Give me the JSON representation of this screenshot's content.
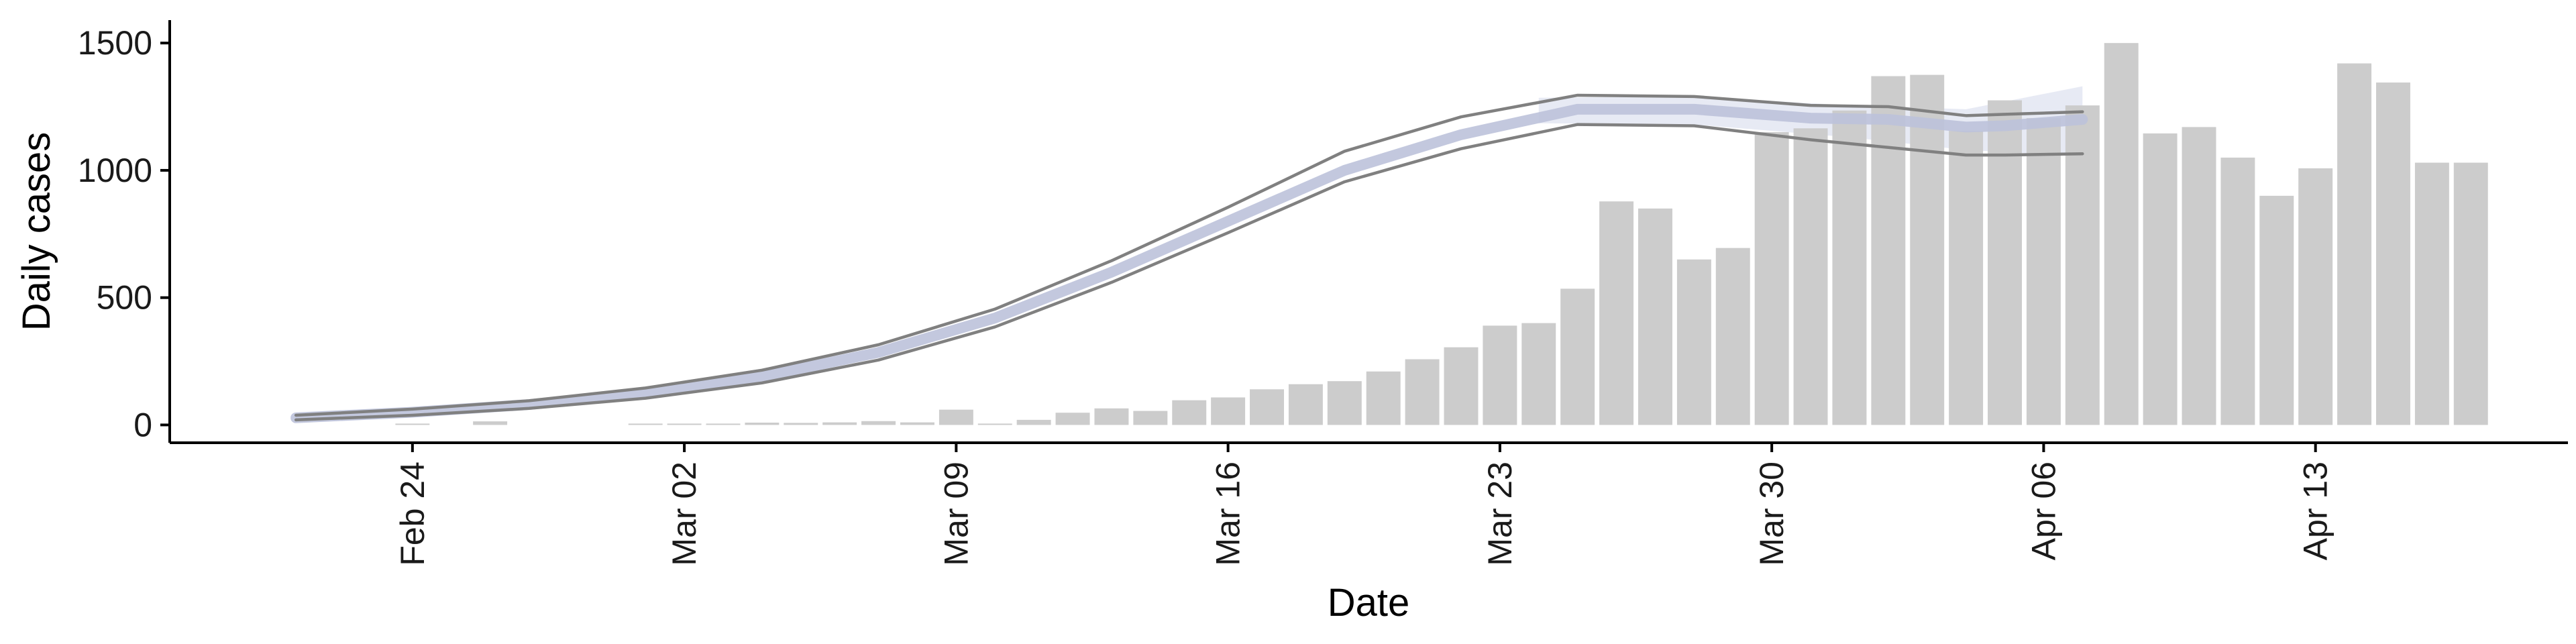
{
  "chart_data": {
    "type": "bar",
    "title": "",
    "xlabel": "Date",
    "ylabel": "Daily cases",
    "ylim": [
      -70,
      1590
    ],
    "yticks": [
      0,
      500,
      1000,
      1500
    ],
    "xticks": [
      {
        "label": "Feb 24",
        "date": "2020-02-24"
      },
      {
        "label": "Mar 02",
        "date": "2020-03-02"
      },
      {
        "label": "Mar 09",
        "date": "2020-03-09"
      },
      {
        "label": "Mar 16",
        "date": "2020-03-16"
      },
      {
        "label": "Mar 23",
        "date": "2020-03-23"
      },
      {
        "label": "Mar 30",
        "date": "2020-03-30"
      },
      {
        "label": "Apr 06",
        "date": "2020-04-06"
      },
      {
        "label": "Apr 13",
        "date": "2020-04-13"
      }
    ],
    "xlim": [
      "2020-02-17T18:00",
      "2020-04-19T12:00"
    ],
    "grid": false,
    "legend": "none",
    "bar_color": "#cccccc",
    "bar_series": {
      "name": "Daily cases",
      "dates": [
        "2020-02-24",
        "2020-02-25",
        "2020-02-26",
        "2020-02-27",
        "2020-02-28",
        "2020-02-29",
        "2020-03-01",
        "2020-03-02",
        "2020-03-03",
        "2020-03-04",
        "2020-03-05",
        "2020-03-06",
        "2020-03-07",
        "2020-03-08",
        "2020-03-09",
        "2020-03-10",
        "2020-03-11",
        "2020-03-12",
        "2020-03-13",
        "2020-03-14",
        "2020-03-15",
        "2020-03-16",
        "2020-03-17",
        "2020-03-18",
        "2020-03-19",
        "2020-03-20",
        "2020-03-21",
        "2020-03-22",
        "2020-03-23",
        "2020-03-24",
        "2020-03-25",
        "2020-03-26",
        "2020-03-27",
        "2020-03-28",
        "2020-03-29",
        "2020-03-30",
        "2020-03-31",
        "2020-04-01",
        "2020-04-02",
        "2020-04-03",
        "2020-04-04",
        "2020-04-05",
        "2020-04-06",
        "2020-04-07",
        "2020-04-08",
        "2020-04-09",
        "2020-04-10",
        "2020-04-11",
        "2020-04-12",
        "2020-04-13",
        "2020-04-14",
        "2020-04-15",
        "2020-04-16",
        "2020-04-17"
      ],
      "values": [
        3,
        0,
        14,
        0,
        0,
        0,
        3,
        4,
        3,
        9,
        8,
        10,
        15,
        10,
        60,
        3,
        20,
        48,
        65,
        55,
        97,
        108,
        140,
        160,
        172,
        210,
        258,
        305,
        390,
        400,
        535,
        878,
        850,
        650,
        695,
        1150,
        1165,
        1235,
        1370,
        1375,
        1155,
        1275,
        1205,
        1255,
        1500,
        1145,
        1170,
        1050,
        900,
        1008,
        1420,
        1345,
        1030,
        1030
      ]
    },
    "series": [
      {
        "role": "fitted-median",
        "color": "#bcc2da",
        "dates": [
          "2020-02-21",
          "2020-02-24",
          "2020-02-27",
          "2020-03-01",
          "2020-03-04",
          "2020-03-07",
          "2020-03-10",
          "2020-03-13",
          "2020-03-16",
          "2020-03-19",
          "2020-03-22",
          "2020-03-25",
          "2020-03-28",
          "2020-03-31",
          "2020-04-02",
          "2020-04-04",
          "2020-04-05",
          "2020-04-07"
        ],
        "values": [
          28,
          50,
          80,
          125,
          190,
          285,
          420,
          600,
          800,
          1000,
          1140,
          1240,
          1240,
          1205,
          1200,
          1170,
          1175,
          1200
        ]
      },
      {
        "role": "upper-bound",
        "color": "#808080",
        "dates": [
          "2020-02-21",
          "2020-02-24",
          "2020-02-27",
          "2020-03-01",
          "2020-03-04",
          "2020-03-07",
          "2020-03-10",
          "2020-03-13",
          "2020-03-16",
          "2020-03-19",
          "2020-03-22",
          "2020-03-25",
          "2020-03-28",
          "2020-03-31",
          "2020-04-02",
          "2020-04-04",
          "2020-04-05",
          "2020-04-07"
        ],
        "values": [
          38,
          62,
          95,
          145,
          215,
          315,
          455,
          645,
          855,
          1075,
          1210,
          1295,
          1290,
          1255,
          1250,
          1215,
          1220,
          1230
        ]
      },
      {
        "role": "lower-bound",
        "color": "#808080",
        "dates": [
          "2020-02-21",
          "2020-02-24",
          "2020-02-27",
          "2020-03-01",
          "2020-03-04",
          "2020-03-07",
          "2020-03-10",
          "2020-03-13",
          "2020-03-16",
          "2020-03-19",
          "2020-03-22",
          "2020-03-25",
          "2020-03-28",
          "2020-03-31",
          "2020-04-02",
          "2020-04-04",
          "2020-04-05",
          "2020-04-07"
        ],
        "values": [
          20,
          38,
          65,
          105,
          165,
          255,
          385,
          560,
          755,
          955,
          1085,
          1180,
          1175,
          1120,
          1090,
          1060,
          1060,
          1065
        ]
      }
    ],
    "ribbon": {
      "color": "#dfe3f0",
      "dates": [
        "2020-03-24",
        "2020-03-28",
        "2020-04-01",
        "2020-04-04",
        "2020-04-07"
      ],
      "upper": [
        1285,
        1290,
        1255,
        1240,
        1330
      ],
      "lower": [
        1185,
        1180,
        1130,
        1080,
        1055
      ]
    }
  }
}
